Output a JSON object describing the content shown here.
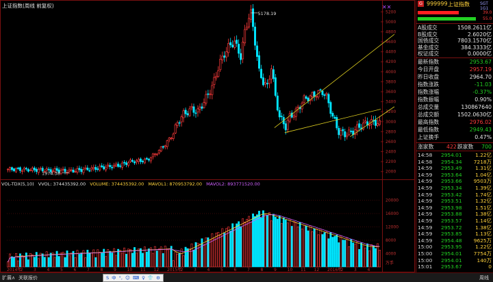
{
  "window": {
    "title": "上证指数(周线 前复权)"
  },
  "chart": {
    "peak_label": "5178.19",
    "low_label": "1974.38",
    "price_axis": [
      "5200",
      "5000",
      "4800",
      "4600",
      "4400",
      "4200",
      "4000",
      "3800",
      "3600",
      "3400",
      "3200",
      "3000",
      "2800",
      "2600",
      "2400",
      "2200",
      "2000"
    ],
    "volume_axis": [
      "20000",
      "16000",
      "12000",
      "8000",
      "4000"
    ],
    "volume_unit": "万手",
    "x_labels": [
      "2014年",
      "2",
      "3",
      "4",
      "5",
      "6",
      "7",
      "8",
      "9",
      "10",
      "11",
      "12",
      "2015年",
      "2",
      "3",
      "4",
      "5",
      "6",
      "7",
      "8",
      "9",
      "10",
      "11",
      "12",
      "2016年",
      "2",
      "3",
      "4"
    ]
  },
  "volume_header": {
    "name": "VOL-TDX(5,10)",
    "vvol": "VVOL: 374435392.00",
    "volume": "VOLUME: 374435392.00",
    "mavol1": "MAVOL1: 870953792.00",
    "mavol2": "MAVOL2: 893771520.00"
  },
  "panel": {
    "code": "999999",
    "name": "上证指数",
    "sub": "SGT 1G1",
    "ratio_up": "39.0",
    "ratio_down": "55.0",
    "stats": [
      {
        "label": "A股成交",
        "value": "1508.2611亿",
        "color": "#e8e8e8"
      },
      {
        "label": "B股成交",
        "value": "2.6020亿",
        "color": "#e8e8e8"
      },
      {
        "label": "国债成交",
        "value": "7803.1570亿",
        "color": "#e8e8e8"
      },
      {
        "label": "基金成交",
        "value": "384.3333亿",
        "color": "#e8e8e8"
      },
      {
        "label": "权证成交",
        "value": "0.0000亿",
        "color": "#e8e8e8"
      }
    ],
    "quote": [
      {
        "label": "最新指数",
        "value": "2953.67",
        "color": "#22d022"
      },
      {
        "label": "今日开盘",
        "value": "2957.19",
        "color": "#ff3b3b"
      },
      {
        "label": "昨日收盘",
        "value": "2964.70",
        "color": "#e8e8e8"
      },
      {
        "label": "指数涨跌",
        "value": "-11.03",
        "color": "#22d022"
      },
      {
        "label": "指数涨幅",
        "value": "-0.37%",
        "color": "#22d022"
      },
      {
        "label": "指数振幅",
        "value": "0.90%",
        "color": "#e8e8e8"
      },
      {
        "label": "总成交量",
        "value": "130867640",
        "color": "#e8e8e8"
      },
      {
        "label": "总成交额",
        "value": "1502.0630亿",
        "color": "#e8e8e8"
      },
      {
        "label": "最高指数",
        "value": "2976.02",
        "color": "#ff3b3b"
      },
      {
        "label": "最低指数",
        "value": "2949.43",
        "color": "#22d022"
      },
      {
        "label": "上证换手",
        "value": "0.47%",
        "color": "#e8e8e8"
      }
    ],
    "updown": {
      "up_label": "涨家数",
      "up_value": "422",
      "down_label": "跌家数",
      "down_value": "700"
    },
    "ticks": [
      {
        "time": "14:58",
        "price": "2954.01",
        "vol": "1.22亿",
        "color": "#22d022"
      },
      {
        "time": "14:58",
        "price": "2954.34",
        "vol": "7218万",
        "color": "#22d022"
      },
      {
        "time": "14:59",
        "price": "2953.49",
        "vol": "1.31亿",
        "color": "#22d022"
      },
      {
        "time": "14:59",
        "price": "2953.64",
        "vol": "1.04亿",
        "color": "#22d022"
      },
      {
        "time": "14:59",
        "price": "2953.66",
        "vol": "9503万",
        "color": "#22d022"
      },
      {
        "time": "14:59",
        "price": "2953.34",
        "vol": "1.39亿",
        "color": "#22d022"
      },
      {
        "time": "14:59",
        "price": "2953.42",
        "vol": "1.74亿",
        "color": "#22d022"
      },
      {
        "time": "14:59",
        "price": "2953.51",
        "vol": "1.32亿",
        "color": "#22d022"
      },
      {
        "time": "14:59",
        "price": "2953.98",
        "vol": "1.51亿",
        "color": "#22d022"
      },
      {
        "time": "14:59",
        "price": "2953.88",
        "vol": "1.38亿",
        "color": "#22d022"
      },
      {
        "time": "14:59",
        "price": "2953.57",
        "vol": "1.14亿",
        "color": "#22d022"
      },
      {
        "time": "14:59",
        "price": "2953.72",
        "vol": "1.38亿",
        "color": "#22d022"
      },
      {
        "time": "14:59",
        "price": "2953.85",
        "vol": "1.13亿",
        "color": "#22d022"
      },
      {
        "time": "14:59",
        "price": "2954.48",
        "vol": "9625万",
        "color": "#22d022"
      },
      {
        "time": "15:00",
        "price": "2953.95",
        "vol": "1.22亿",
        "color": "#22d022"
      },
      {
        "time": "15:00",
        "price": "2954.01",
        "vol": "7754万",
        "color": "#22d022"
      },
      {
        "time": "15:00",
        "price": "2954.01",
        "vol": "140万",
        "color": "#22d022"
      },
      {
        "time": "15:01",
        "price": "2953.67",
        "vol": "0",
        "color": "#22d022"
      }
    ]
  },
  "bottombar": {
    "left1": "扩展∧",
    "left2": "关联报价",
    "ime": [
      "S",
      "中",
      "°,",
      "☺",
      "⌨",
      "♀",
      "👕",
      "⚙"
    ],
    "right": "周线"
  }
}
